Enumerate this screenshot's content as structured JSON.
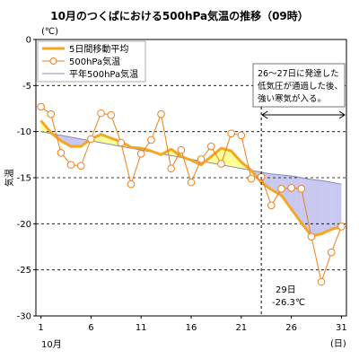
{
  "chart_data": {
    "type": "line",
    "title": "10月のつくばにおける500hPa気温の推移（09時）",
    "ylabel": "気温",
    "yunit": "(℃)",
    "xunit": "(日)",
    "xlabel_sub": "10月",
    "ylim": [
      -30,
      0
    ],
    "xlim": [
      0.5,
      31.5
    ],
    "yticks": [
      0,
      -5,
      -10,
      -15,
      -20,
      -25,
      -30
    ],
    "xticks": [
      1,
      6,
      11,
      16,
      21,
      26,
      31
    ],
    "grid": "dashed horizontal",
    "legend_position": "top-left",
    "x": [
      1,
      2,
      3,
      4,
      5,
      6,
      7,
      8,
      9,
      10,
      11,
      12,
      13,
      14,
      15,
      16,
      17,
      18,
      19,
      20,
      21,
      22,
      23,
      24,
      25,
      26,
      27,
      28,
      29,
      30,
      31
    ],
    "series": [
      {
        "name": "5日間移動平均",
        "color": "#f5a623",
        "values": [
          -8.8,
          -10.1,
          -11.0,
          -11.6,
          -11.6,
          -10.8,
          -10.3,
          -10.7,
          -11.1,
          -11.7,
          -11.8,
          -12.1,
          -12.5,
          -11.9,
          -12.7,
          -13.1,
          -13.6,
          -12.7,
          -11.8,
          -12.1,
          -13.3,
          -14.2,
          -15.5,
          -16.3,
          -16.9,
          -18.4,
          -19.9,
          -21.3,
          -21.1,
          -20.6,
          -20.3
        ]
      },
      {
        "name": "500hPa気温",
        "color": "#f07f1a",
        "values": [
          -7.3,
          -8.1,
          -12.3,
          -13.6,
          -13.7,
          -10.8,
          -8.0,
          -8.2,
          -11.2,
          -15.7,
          -12.4,
          -10.9,
          -8.1,
          -14.0,
          -12.0,
          -15.5,
          -13.0,
          -11.6,
          -13.5,
          -10.2,
          -10.4,
          -15.1,
          -14.9,
          -18.0,
          -16.2,
          -16.1,
          -16.2,
          -21.4,
          -26.3,
          -23.1,
          -20.3
        ]
      },
      {
        "name": "平年500hPa気温",
        "color": "#8a8ab5",
        "values": [
          -10.0,
          -10.2,
          -10.4,
          -10.6,
          -10.8,
          -11.0,
          -11.2,
          -11.4,
          -11.6,
          -11.8,
          -12.0,
          -12.2,
          -12.4,
          -12.6,
          -12.8,
          -13.0,
          -13.2,
          -13.4,
          -13.6,
          -13.8,
          -14.0,
          -14.2,
          -14.4,
          -14.6,
          -14.7,
          -14.8,
          -15.0,
          -15.2,
          -15.3,
          -15.5,
          -15.7
        ]
      }
    ],
    "fill_colors": {
      "above_normal": "#ffff9a",
      "below_normal": "#c8c8f0"
    },
    "annotation_box": {
      "lines": [
        "26～27日に発達した",
        "低気圧が通過した後、",
        "強い寒気が入る。"
      ],
      "start_day": 23
    },
    "point_label": {
      "lines": [
        "29日",
        "-26.3℃"
      ],
      "day": 29,
      "value": -26.3
    }
  }
}
